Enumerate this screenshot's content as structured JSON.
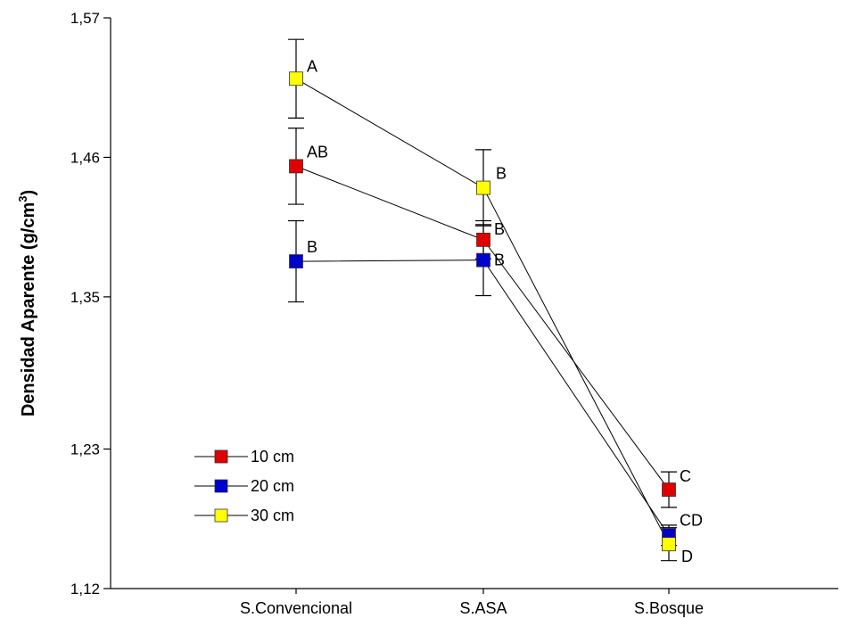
{
  "chart_data": {
    "type": "line",
    "categories": [
      "S.Convencional",
      "S.ASA",
      "S.Bosque"
    ],
    "ylabel": "Densidad Aparente (g/cm",
    "ylabel_sup": "3",
    "ylabel_close": ")",
    "ylim": [
      1.12,
      1.57
    ],
    "yticks": [
      1.12,
      1.23,
      1.35,
      1.46,
      1.57
    ],
    "ytick_labels": [
      "1,12",
      "1,23",
      "1,35",
      "1,46",
      "1,57"
    ],
    "grid": false,
    "legend_position": "bottom-left",
    "series": [
      {
        "name": "10 cm",
        "color": "#e00000",
        "values": [
          1.453,
          1.395,
          1.198
        ],
        "err": [
          0.03,
          0.015,
          0.014
        ],
        "labels": [
          "AB",
          "B",
          "C"
        ]
      },
      {
        "name": "20 cm",
        "color": "#0000cc",
        "values": [
          1.378,
          1.379,
          1.162
        ],
        "err": [
          0.032,
          0.028,
          0.008
        ],
        "labels": [
          "B",
          "B",
          "CD"
        ]
      },
      {
        "name": "30 cm",
        "color": "#ffff00",
        "values": [
          1.522,
          1.436,
          1.155
        ],
        "err": [
          0.031,
          0.03,
          0.013
        ],
        "labels": [
          "A",
          "B",
          "D"
        ]
      }
    ]
  }
}
